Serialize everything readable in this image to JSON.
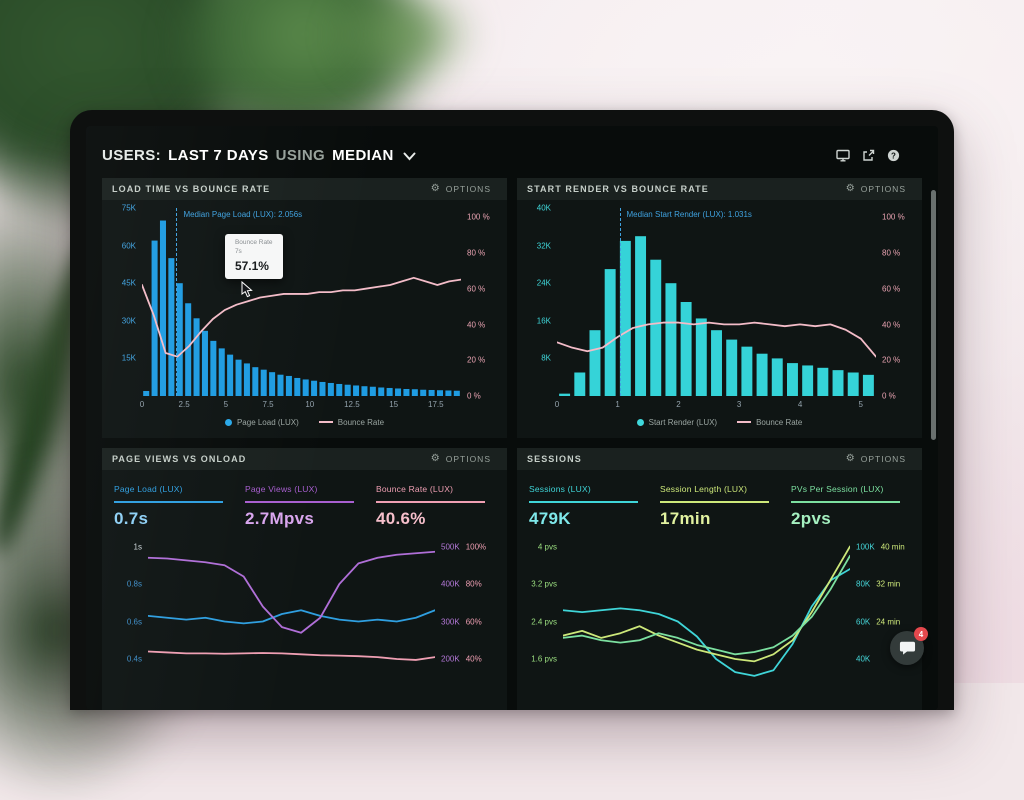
{
  "ui": {
    "gear_glyph": "⚙",
    "help_glyph": "?"
  },
  "header": {
    "title": {
      "prefix": "USERS:",
      "range": "LAST 7 DAYS",
      "using": "USING",
      "metric": "MEDIAN"
    }
  },
  "panels": {
    "load_time": {
      "title": "LOAD TIME VS BOUNCE RATE",
      "options_label": "OPTIONS",
      "tooltip": {
        "title": "Bounce Rate",
        "x": "7s",
        "value": "57.1%"
      },
      "legend": [
        {
          "label": "Page Load (LUX)",
          "color": "#29a8e8",
          "shape": "dot"
        },
        {
          "label": "Bounce Rate",
          "color": "#f3bcc8",
          "shape": "line"
        }
      ]
    },
    "start_render": {
      "title": "START RENDER VS BOUNCE RATE",
      "options_label": "OPTIONS",
      "legend": [
        {
          "label": "Start Render (LUX)",
          "color": "#3fd8dc",
          "shape": "dot"
        },
        {
          "label": "Bounce Rate",
          "color": "#f3bcc8",
          "shape": "line"
        }
      ]
    },
    "page_views": {
      "title": "PAGE VIEWS VS ONLOAD",
      "options_label": "OPTIONS",
      "metrics": [
        {
          "label": "Page Load (LUX)",
          "value": "0.7s",
          "color": "#2f9fe0",
          "value_color": "#8fd0f5"
        },
        {
          "label": "Page Views (LUX)",
          "value": "2.7Mpvs",
          "color": "#a85fd0",
          "value_color": "#d9a6ee"
        },
        {
          "label": "Bounce Rate (LUX)",
          "value": "40.6%",
          "color": "#ef9fb3",
          "value_color": "#f6bfcb"
        }
      ]
    },
    "sessions": {
      "title": "SESSIONS",
      "options_label": "OPTIONS",
      "metrics": [
        {
          "label": "Sessions (LUX)",
          "value": "479K",
          "color": "#3fd5d8",
          "value_color": "#7fe8ea"
        },
        {
          "label": "Session Length (LUX)",
          "value": "17min",
          "color": "#cde87a",
          "value_color": "#e2f2a0"
        },
        {
          "label": "PVs Per Session (LUX)",
          "value": "2pvs",
          "color": "#7ce0a0",
          "value_color": "#a5f0c0"
        }
      ]
    }
  },
  "chat": {
    "badge": "4"
  },
  "chart_data": {
    "load_time": {
      "type": "bar",
      "title": "LOAD TIME VS BOUNCE RATE",
      "x_unit": "seconds",
      "bin_width_s": 0.5,
      "x_max_s": 19,
      "bars": {
        "color": "#1f9ce2",
        "max": 75,
        "unit": "K users",
        "values": [
          2,
          62,
          70,
          55,
          45,
          37,
          31,
          26,
          22,
          19,
          16.5,
          14.5,
          13,
          11.5,
          10.5,
          9.5,
          8.5,
          8,
          7.2,
          6.6,
          6.1,
          5.6,
          5.2,
          4.8,
          4.5,
          4.2,
          3.9,
          3.7,
          3.4,
          3.2,
          3,
          2.8,
          2.7,
          2.5,
          2.4,
          2.3,
          2.2,
          2.1
        ]
      },
      "lines": [
        {
          "name": "Bounce Rate",
          "color": "#f3bcc8",
          "unit": "%",
          "range": [
            0,
            105
          ],
          "values": [
            62,
            45,
            24,
            22,
            28,
            36,
            43,
            48,
            51,
            53,
            55,
            56,
            57,
            57,
            57,
            58,
            58,
            59,
            59,
            60,
            61,
            62,
            64,
            66,
            64,
            62,
            64,
            65
          ]
        }
      ],
      "annotation": {
        "label": "Median Page Load (LUX): 2.056s",
        "pos": 0.108,
        "color": "#3fa2e0"
      },
      "y_left": {
        "color": "#3fa2e0",
        "ticks": [
          {
            "text": "75K",
            "pos": 0
          },
          {
            "text": "60K",
            "pos": 0.2
          },
          {
            "text": "45K",
            "pos": 0.4
          },
          {
            "text": "30K",
            "pos": 0.6
          },
          {
            "text": "15K",
            "pos": 0.8
          }
        ]
      },
      "y_right": {
        "color": "#e9a3b2",
        "ticks": [
          {
            "text": "100 %",
            "pos": 0.05
          },
          {
            "text": "80 %",
            "pos": 0.24
          },
          {
            "text": "60 %",
            "pos": 0.43
          },
          {
            "text": "40 %",
            "pos": 0.62
          },
          {
            "text": "20 %",
            "pos": 0.81
          },
          {
            "text": "0 %",
            "pos": 1.0
          }
        ]
      },
      "x_ticks": [
        {
          "text": "0",
          "pos": 0
        },
        {
          "text": "2.5",
          "pos": 0.132
        },
        {
          "text": "5",
          "pos": 0.263
        },
        {
          "text": "7.5",
          "pos": 0.395
        },
        {
          "text": "10",
          "pos": 0.526
        },
        {
          "text": "12.5",
          "pos": 0.658
        },
        {
          "text": "15",
          "pos": 0.789
        },
        {
          "text": "17.5",
          "pos": 0.921
        }
      ]
    },
    "start_render": {
      "type": "bar",
      "title": "START RENDER VS BOUNCE RATE",
      "x_unit": "seconds",
      "bin_width_s": 0.25,
      "x_max_s": 5.25,
      "bars": {
        "color": "#35d3d8",
        "max": 40,
        "unit": "K users",
        "values": [
          0.5,
          5,
          14,
          27,
          33,
          34,
          29,
          24,
          20,
          16.5,
          14,
          12,
          10.5,
          9,
          8,
          7,
          6.5,
          6,
          5.5,
          5,
          4.5
        ]
      },
      "lines": [
        {
          "name": "Bounce Rate",
          "color": "#f3bcc8",
          "unit": "%",
          "range": [
            0,
            105
          ],
          "values": [
            30,
            27,
            25,
            27,
            33,
            38,
            40,
            41,
            41,
            40,
            41,
            40,
            40,
            41,
            40,
            39,
            40,
            39,
            40,
            37,
            32,
            22
          ]
        }
      ],
      "annotation": {
        "label": "Median Start Render (LUX): 1.031s",
        "pos": 0.196,
        "color": "#3fa2e0"
      },
      "y_left": {
        "color": "#3fd5d8",
        "ticks": [
          {
            "text": "40K",
            "pos": 0
          },
          {
            "text": "32K",
            "pos": 0.2
          },
          {
            "text": "24K",
            "pos": 0.4
          },
          {
            "text": "16K",
            "pos": 0.6
          },
          {
            "text": "8K",
            "pos": 0.8
          }
        ]
      },
      "y_right": {
        "color": "#e9a3b2",
        "ticks": [
          {
            "text": "100 %",
            "pos": 0.05
          },
          {
            "text": "80 %",
            "pos": 0.24
          },
          {
            "text": "60 %",
            "pos": 0.43
          },
          {
            "text": "40 %",
            "pos": 0.62
          },
          {
            "text": "20 %",
            "pos": 0.81
          },
          {
            "text": "0 %",
            "pos": 1.0
          }
        ]
      },
      "x_ticks": [
        {
          "text": "0",
          "pos": 0
        },
        {
          "text": "1",
          "pos": 0.19
        },
        {
          "text": "2",
          "pos": 0.381
        },
        {
          "text": "3",
          "pos": 0.571
        },
        {
          "text": "4",
          "pos": 0.762
        },
        {
          "text": "5",
          "pos": 0.952
        }
      ]
    },
    "page_views": {
      "type": "line",
      "title": "PAGE VIEWS VS ONLOAD",
      "lines": [
        {
          "name": "Page Load (LUX)",
          "color": "#2f9fe0",
          "unit": "s",
          "range": [
            0.24,
            1.04
          ],
          "values": [
            0.63,
            0.62,
            0.61,
            0.62,
            0.6,
            0.59,
            0.6,
            0.64,
            0.66,
            0.63,
            0.61,
            0.6,
            0.61,
            0.6,
            0.62,
            0.66
          ]
        },
        {
          "name": "Page Views (LUX)",
          "color": "#b06fd8",
          "unit": "K pvs",
          "range": [
            120,
            520
          ],
          "values": [
            470,
            468,
            463,
            458,
            450,
            420,
            340,
            285,
            270,
            310,
            400,
            455,
            470,
            478,
            482,
            486
          ]
        },
        {
          "name": "Bounce Rate (LUX)",
          "color": "#ef9fb3",
          "unit": "%",
          "range": [
            24,
            104
          ],
          "values": [
            44,
            43.5,
            43,
            43,
            42.8,
            43,
            43.2,
            43,
            42.5,
            42,
            41.8,
            41.5,
            41,
            40,
            39.5,
            41
          ]
        }
      ],
      "y_left": {
        "color": "#3f8fc9",
        "ticks": [
          {
            "text": "1s",
            "pos": 0.05,
            "color": "#cfd8da"
          },
          {
            "text": "0.8s",
            "pos": 0.3
          },
          {
            "text": "0.6s",
            "pos": 0.55
          },
          {
            "text": "0.4s",
            "pos": 0.8
          }
        ]
      },
      "y_right": {
        "a_color": "#b478d8",
        "b_color": "#ef9fb3",
        "ticks": [
          {
            "a": "500K",
            "b": "100%",
            "pos": 0.05
          },
          {
            "a": "400K",
            "b": "80%",
            "pos": 0.3
          },
          {
            "a": "300K",
            "b": "60%",
            "pos": 0.55
          },
          {
            "a": "200K",
            "b": "40%",
            "pos": 0.8
          }
        ]
      }
    },
    "sessions": {
      "type": "line",
      "title": "SESSIONS",
      "lines": [
        {
          "name": "Sessions (LUX)",
          "color": "#3fd5d8",
          "unit": "K",
          "range": [
            24,
            104
          ],
          "values": [
            66,
            65,
            66,
            67,
            66,
            64,
            60,
            52,
            40,
            33,
            31,
            34,
            48,
            68,
            82,
            88
          ]
        },
        {
          "name": "Session Length (LUX)",
          "color": "#cde87a",
          "unit": "min",
          "range": [
            9.6,
            41.6
          ],
          "values": [
            21,
            22,
            20.5,
            21.5,
            23,
            21,
            19.5,
            18,
            17,
            16,
            15.5,
            17,
            20,
            26,
            33,
            40
          ]
        },
        {
          "name": "PVs Per Session (LUX)",
          "color": "#7ce0a0",
          "unit": "pvs",
          "range": [
            0.96,
            4.16
          ],
          "values": [
            2.05,
            2.1,
            2.0,
            1.95,
            2.0,
            2.15,
            2.05,
            1.9,
            1.8,
            1.7,
            1.75,
            1.85,
            2.1,
            2.5,
            3.1,
            3.8
          ]
        }
      ],
      "y_left": {
        "color": "#9add7f",
        "ticks": [
          {
            "text": "4 pvs",
            "pos": 0.05
          },
          {
            "text": "3.2 pvs",
            "pos": 0.3
          },
          {
            "text": "2.4 pvs",
            "pos": 0.55
          },
          {
            "text": "1.6 pvs",
            "pos": 0.8
          }
        ]
      },
      "y_right": {
        "a_color": "#45d5d8",
        "b_color": "#cde87a",
        "ticks": [
          {
            "a": "100K",
            "b": "40 min",
            "pos": 0.05
          },
          {
            "a": "80K",
            "b": "32 min",
            "pos": 0.3
          },
          {
            "a": "60K",
            "b": "24 min",
            "pos": 0.55
          },
          {
            "a": "40K",
            "b": "",
            "pos": 0.8
          }
        ]
      }
    }
  }
}
